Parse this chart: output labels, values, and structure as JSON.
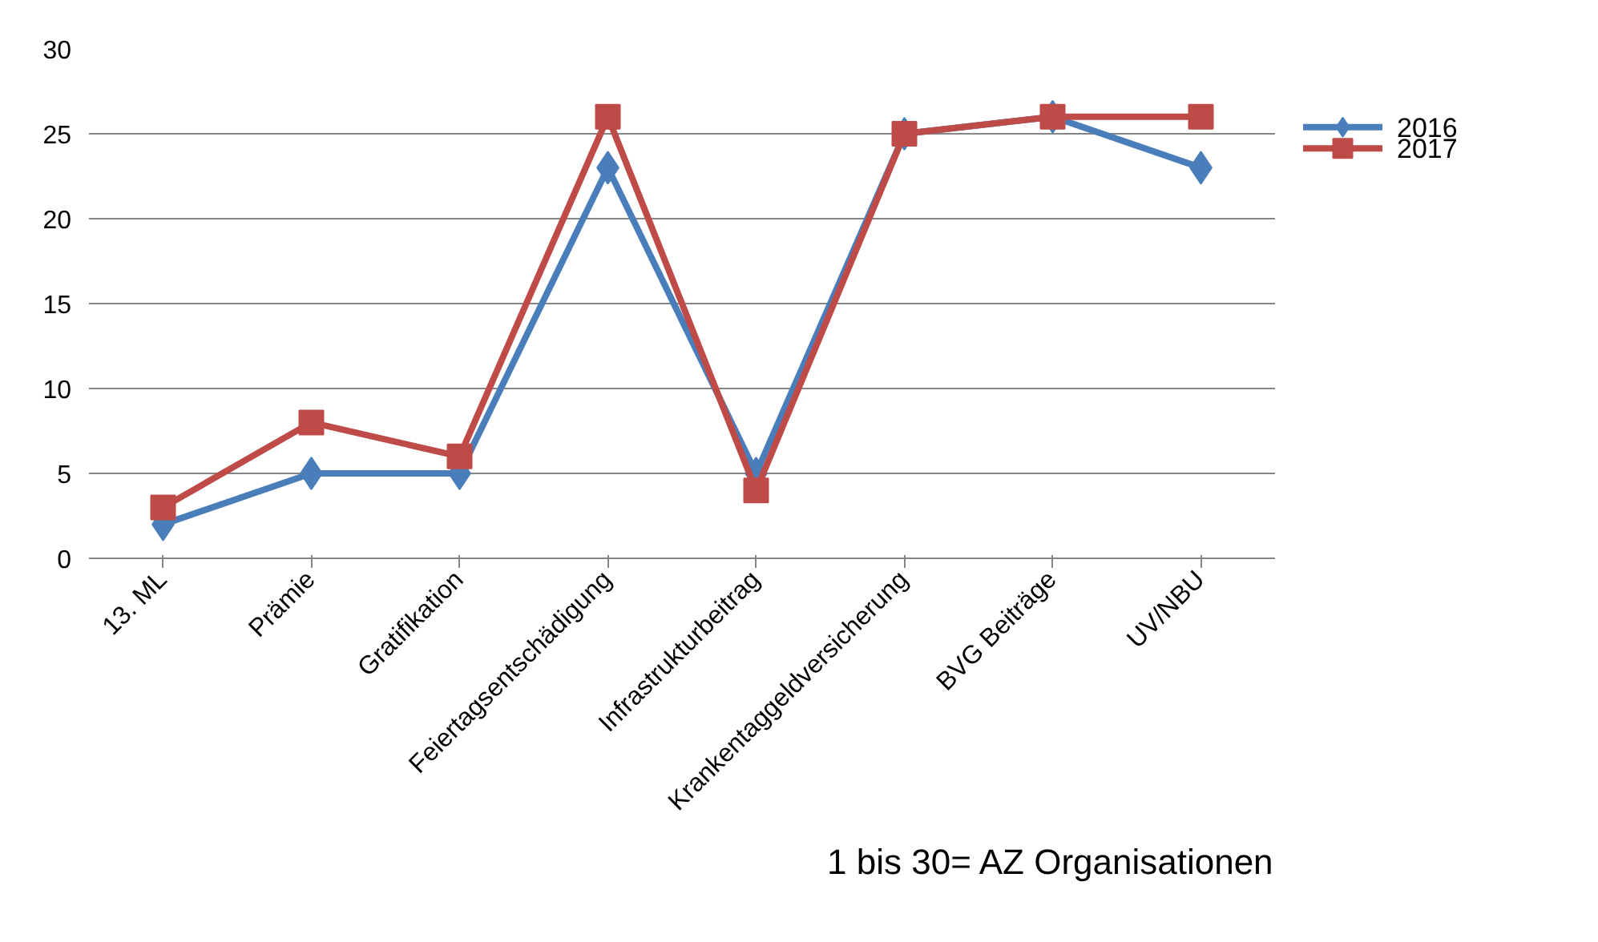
{
  "chart_data": {
    "type": "line",
    "categories": [
      "13. ML",
      "Prämie",
      "Gratifikation",
      "Feiertagsentschädigung",
      "Infrastrukturbeitrag",
      "Krankentaggeldversicherung",
      "BVG Beiträge",
      "UV/NBU"
    ],
    "series": [
      {
        "name": "2016",
        "color": "#4a7ebb",
        "marker": "diamond",
        "values": [
          2,
          5,
          5,
          23,
          5,
          25,
          26,
          23
        ]
      },
      {
        "name": "2017",
        "color": "#be4b48",
        "marker": "square",
        "values": [
          3,
          8,
          6,
          26,
          4,
          25,
          26,
          26
        ]
      }
    ],
    "ylim": [
      0,
      30
    ],
    "yticks": [
      0,
      5,
      10,
      15,
      20,
      25,
      30
    ],
    "grid": "y",
    "legend": "right",
    "line_style": "solid",
    "annotations": [
      "1 bis 30= AZ Organisationen"
    ]
  }
}
